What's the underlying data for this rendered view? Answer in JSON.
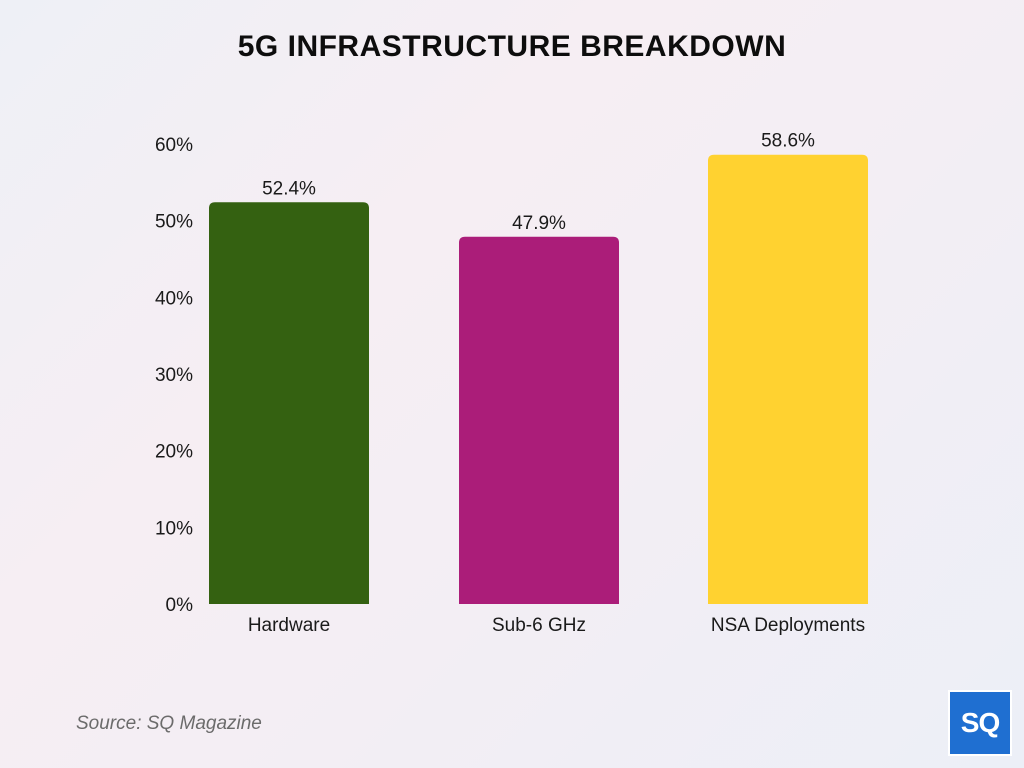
{
  "chart_data": {
    "type": "bar",
    "title": "5G INFRASTRUCTURE BREAKDOWN",
    "categories": [
      "Hardware",
      "Sub-6 GHz",
      "NSA Deployments"
    ],
    "values": [
      52.4,
      47.9,
      58.6
    ],
    "value_labels": [
      "52.4%",
      "47.9%",
      "58.6%"
    ],
    "colors": [
      "#346111",
      "#ab1d79",
      "#ffd230"
    ],
    "y_ticks": [
      0,
      10,
      20,
      30,
      40,
      50,
      60
    ],
    "y_tick_labels": [
      "0%",
      "10%",
      "20%",
      "30%",
      "40%",
      "50%",
      "60%"
    ],
    "ylim": [
      0,
      60
    ],
    "xlabel": "",
    "ylabel": "",
    "grid": false
  },
  "footer": {
    "source": "Source: SQ Magazine"
  },
  "logo": {
    "text": "SQ",
    "color": "#1f6fd1"
  }
}
